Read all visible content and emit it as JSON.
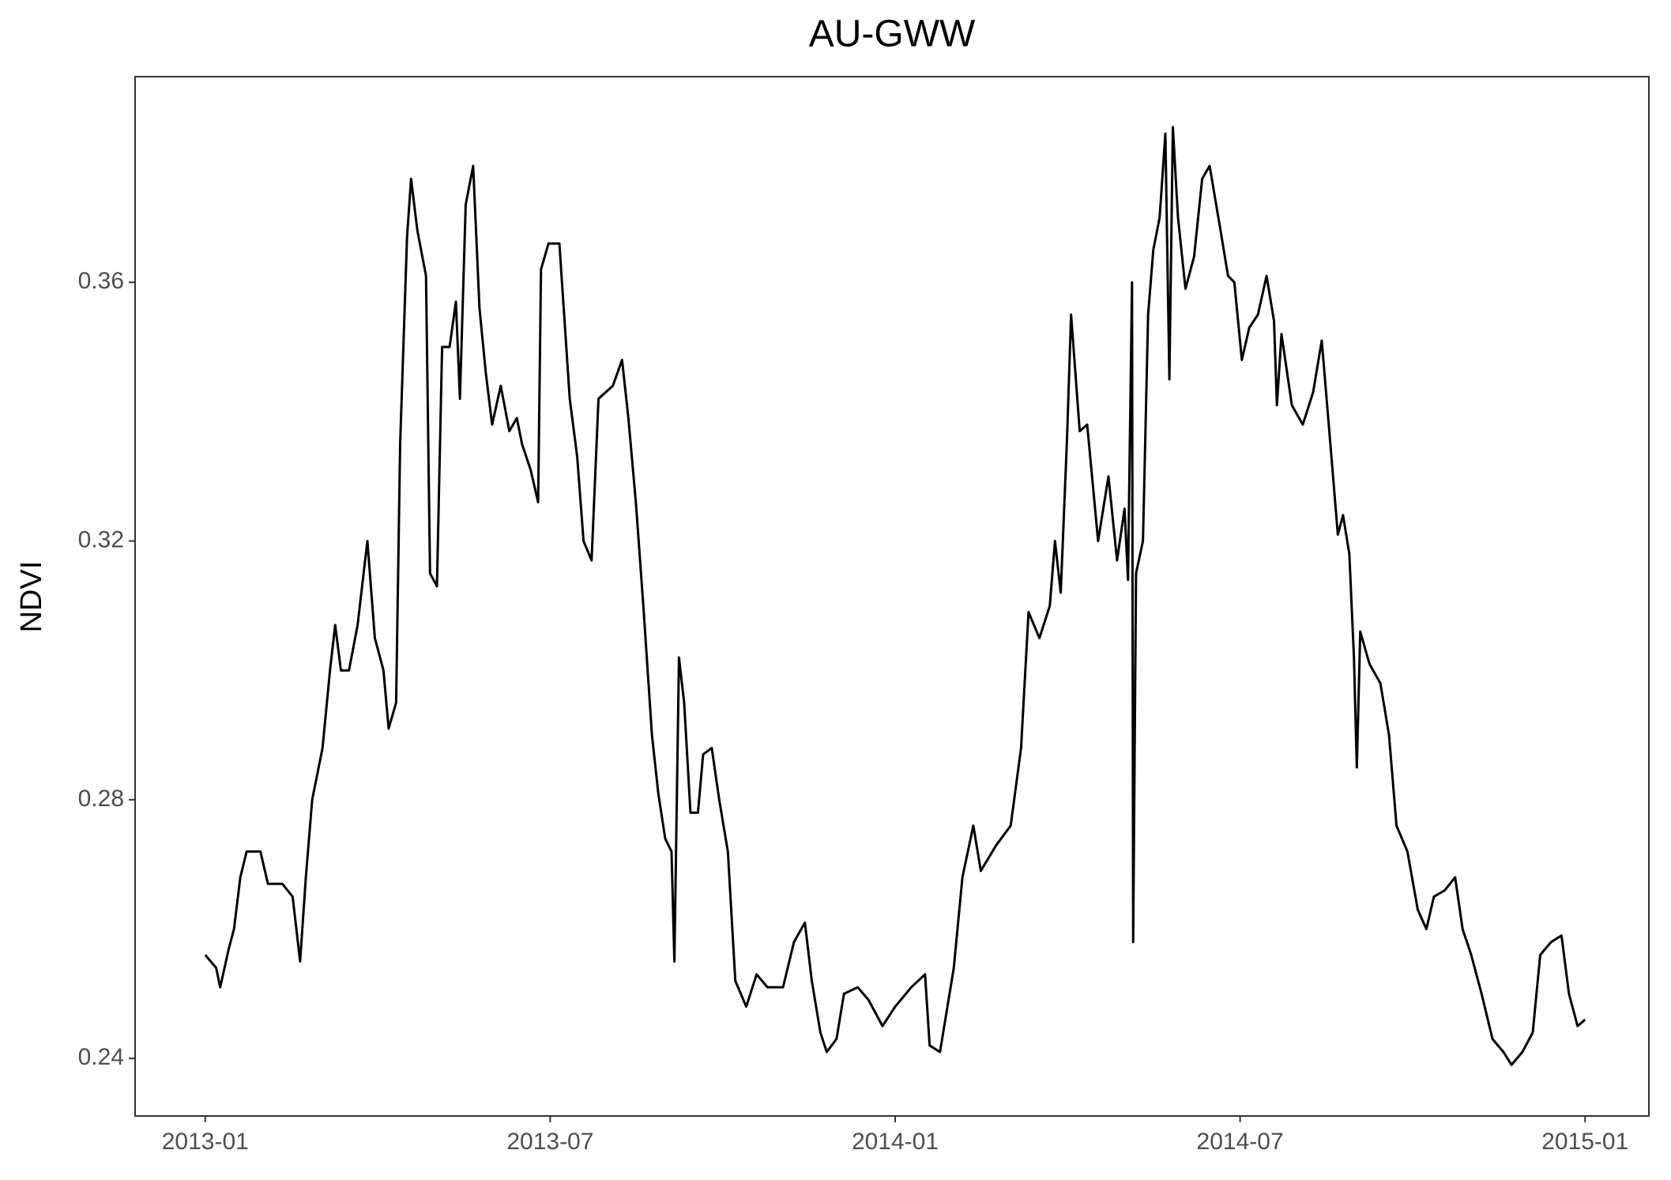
{
  "chart_data": {
    "type": "line",
    "title": "AU-GWW",
    "y_label": "NDVI",
    "color": "#000000",
    "grid": false,
    "xlim": [
      -1.22,
      25.11
    ],
    "ylim": [
      0.2311,
      0.3918
    ],
    "xticks": [
      {
        "value": 0,
        "label": "2013-01"
      },
      {
        "value": 6,
        "label": "2013-07"
      },
      {
        "value": 12,
        "label": "2014-01"
      },
      {
        "value": 18,
        "label": "2014-07"
      },
      {
        "value": 24,
        "label": "2015-01"
      }
    ],
    "yticks": [
      0.24,
      0.28,
      0.32,
      0.36
    ],
    "x": [
      0,
      0.19,
      0.26,
      0.41,
      0.5,
      0.61,
      0.72,
      0.96,
      1.09,
      1.34,
      1.52,
      1.65,
      1.75,
      1.86,
      2.04,
      2.17,
      2.26,
      2.36,
      2.5,
      2.65,
      2.82,
      2.95,
      3.1,
      3.19,
      3.32,
      3.39,
      3.51,
      3.58,
      3.69,
      3.84,
      3.91,
      4.03,
      4.12,
      4.25,
      4.36,
      4.43,
      4.53,
      4.66,
      4.77,
      4.88,
      4.99,
      5.14,
      5.29,
      5.42,
      5.51,
      5.66,
      5.79,
      5.84,
      5.97,
      6.16,
      6.34,
      6.47,
      6.58,
      6.72,
      6.84,
      7.09,
      7.25,
      7.36,
      7.49,
      7.62,
      7.77,
      7.88,
      8.0,
      8.11,
      8.16,
      8.24,
      8.33,
      8.44,
      8.57,
      8.66,
      8.81,
      8.94,
      9.09,
      9.22,
      9.41,
      9.59,
      9.78,
      10.05,
      10.24,
      10.43,
      10.55,
      10.7,
      10.81,
      10.98,
      11.11,
      11.35,
      11.54,
      11.78,
      12.0,
      12.28,
      12.52,
      12.6,
      12.78,
      13.02,
      13.17,
      13.36,
      13.49,
      13.76,
      14.01,
      14.19,
      14.32,
      14.51,
      14.69,
      14.78,
      14.88,
      14.99,
      15.06,
      15.21,
      15.34,
      15.53,
      15.71,
      15.86,
      15.99,
      16.05,
      16.12,
      16.14,
      16.19,
      16.31,
      16.4,
      16.49,
      16.6,
      16.7,
      16.77,
      16.83,
      16.92,
      17.05,
      17.2,
      17.34,
      17.47,
      17.66,
      17.79,
      17.9,
      18.03,
      18.16,
      18.31,
      18.46,
      18.59,
      18.64,
      18.72,
      18.9,
      19.09,
      19.27,
      19.42,
      19.57,
      19.7,
      19.79,
      19.9,
      19.98,
      20.03,
      20.09,
      20.25,
      20.44,
      20.59,
      20.72,
      20.91,
      21.09,
      21.24,
      21.37,
      21.56,
      21.74,
      21.87,
      22.02,
      22.2,
      22.39,
      22.58,
      22.72,
      22.91,
      23.09,
      23.22,
      23.41,
      23.59,
      23.72,
      23.87,
      24.0
    ],
    "values": [
      0.256,
      0.254,
      0.251,
      0.257,
      0.26,
      0.268,
      0.272,
      0.272,
      0.267,
      0.267,
      0.265,
      0.255,
      0.268,
      0.28,
      0.288,
      0.3,
      0.307,
      0.3,
      0.3,
      0.307,
      0.32,
      0.305,
      0.3,
      0.291,
      0.295,
      0.335,
      0.367,
      0.376,
      0.368,
      0.361,
      0.315,
      0.313,
      0.35,
      0.35,
      0.357,
      0.342,
      0.372,
      0.378,
      0.356,
      0.346,
      0.338,
      0.344,
      0.337,
      0.339,
      0.335,
      0.331,
      0.326,
      0.362,
      0.366,
      0.366,
      0.342,
      0.333,
      0.32,
      0.317,
      0.342,
      0.344,
      0.348,
      0.339,
      0.326,
      0.31,
      0.29,
      0.281,
      0.274,
      0.272,
      0.255,
      0.302,
      0.295,
      0.278,
      0.278,
      0.287,
      0.288,
      0.28,
      0.272,
      0.252,
      0.248,
      0.253,
      0.251,
      0.251,
      0.258,
      0.261,
      0.252,
      0.244,
      0.241,
      0.243,
      0.25,
      0.251,
      0.249,
      0.245,
      0.248,
      0.251,
      0.253,
      0.242,
      0.241,
      0.254,
      0.268,
      0.276,
      0.269,
      0.273,
      0.276,
      0.288,
      0.309,
      0.305,
      0.31,
      0.32,
      0.312,
      0.336,
      0.355,
      0.337,
      0.338,
      0.32,
      0.33,
      0.317,
      0.325,
      0.314,
      0.36,
      0.258,
      0.315,
      0.32,
      0.355,
      0.365,
      0.37,
      0.383,
      0.345,
      0.384,
      0.37,
      0.359,
      0.364,
      0.376,
      0.378,
      0.368,
      0.361,
      0.36,
      0.348,
      0.353,
      0.355,
      0.361,
      0.354,
      0.341,
      0.352,
      0.341,
      0.338,
      0.343,
      0.351,
      0.335,
      0.321,
      0.324,
      0.318,
      0.302,
      0.285,
      0.306,
      0.301,
      0.298,
      0.29,
      0.276,
      0.272,
      0.263,
      0.26,
      0.265,
      0.266,
      0.268,
      0.26,
      0.256,
      0.25,
      0.243,
      0.241,
      0.239,
      0.241,
      0.244,
      0.256,
      0.258,
      0.259,
      0.25,
      0.245,
      0.246
    ]
  }
}
